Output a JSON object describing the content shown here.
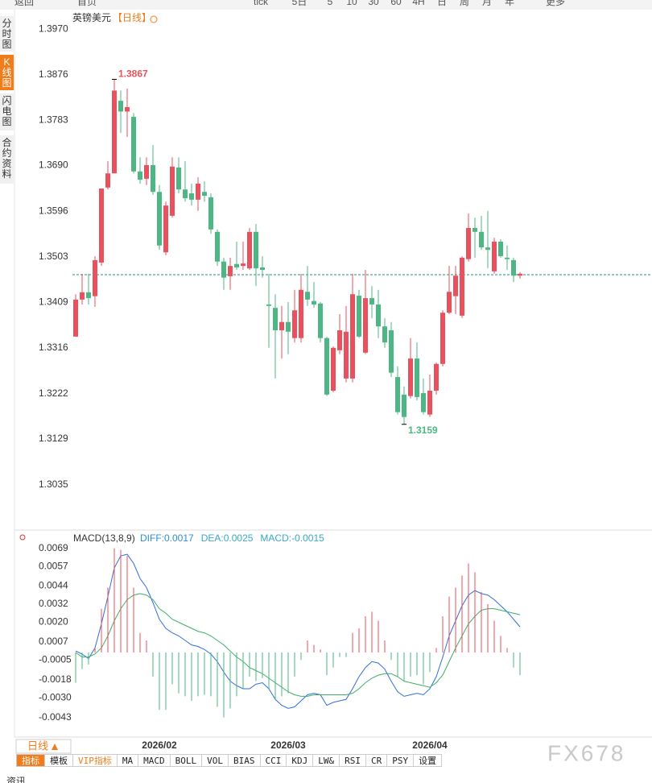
{
  "toolbar": {
    "items": [
      "返回",
      "首页",
      "tick",
      "5日",
      "5",
      "10",
      "30",
      "60",
      "4H",
      "日",
      "周",
      "月",
      "年",
      "更多"
    ]
  },
  "sidebar": {
    "items": [
      "分时图",
      "K线图",
      "闪电图",
      "合约资料"
    ]
  },
  "header": {
    "symbol": "英镑美元",
    "period": "【日线】"
  },
  "chart_data": [
    {
      "type": "candlestick",
      "categories": [
        null,
        null,
        null,
        null,
        null,
        null,
        null,
        null,
        null,
        null,
        null,
        null,
        null,
        "2026/02",
        null,
        null,
        null,
        null,
        null,
        null,
        null,
        null,
        null,
        null,
        null,
        null,
        null,
        null,
        null,
        null,
        null,
        null,
        null,
        "2026/03",
        null,
        null,
        null,
        null,
        null,
        null,
        null,
        null,
        null,
        null,
        null,
        null,
        null,
        null,
        null,
        null,
        null,
        null,
        null,
        null,
        null,
        "2026/04",
        null,
        null,
        null,
        null,
        null,
        null,
        null,
        null,
        null,
        null,
        null,
        null,
        null,
        null
      ],
      "open": [
        1.3339,
        1.3415,
        1.343,
        1.3422,
        1.3491,
        1.3645,
        1.3674,
        1.3823,
        1.3801,
        1.379,
        1.3678,
        1.3663,
        1.3691,
        1.3636,
        1.3512,
        1.3587,
        1.3686,
        1.3641,
        1.3633,
        1.362,
        1.3636,
        1.3625,
        1.3554,
        1.3493,
        1.3463,
        1.3488,
        1.3484,
        1.3479,
        1.3554,
        1.3481,
        1.3405,
        1.3398,
        1.3352,
        1.3369,
        1.3336,
        1.3336,
        1.3431,
        1.3412,
        1.3407,
        1.3336,
        1.3228,
        1.3311,
        1.3253,
        1.3253,
        1.3423,
        1.3306,
        1.3418,
        1.3405,
        1.336,
        1.3352,
        1.3256,
        1.322,
        1.3217,
        1.3294,
        1.3223,
        1.3179,
        1.3228,
        1.3283,
        1.3388,
        1.3422,
        1.3382,
        1.3498,
        1.3562,
        1.3554,
        1.3522,
        1.3473,
        1.3534,
        1.3501,
        1.3496,
        1.3464
      ],
      "high": [
        1.3426,
        1.3468,
        1.3468,
        1.3504,
        1.3643,
        1.3699,
        1.3867,
        1.3844,
        1.3848,
        1.3798,
        1.3707,
        1.3707,
        1.3732,
        1.365,
        1.3616,
        1.3707,
        1.3707,
        1.3699,
        1.3653,
        1.3666,
        1.3658,
        1.3633,
        1.3559,
        1.3501,
        1.3501,
        1.3534,
        1.3534,
        1.3562,
        1.357,
        1.3504,
        1.3468,
        1.3426,
        1.3402,
        1.341,
        1.3435,
        1.3468,
        1.3484,
        1.3451,
        1.341,
        1.3339,
        1.3319,
        1.3385,
        1.3402,
        1.3468,
        1.3435,
        1.3476,
        1.3443,
        1.3435,
        1.3377,
        1.3369,
        1.3278,
        1.3237,
        1.3336,
        1.3327,
        1.3253,
        1.3261,
        1.3286,
        1.3393,
        1.3484,
        1.3484,
        1.3504,
        1.3592,
        1.3583,
        1.3587,
        1.3597,
        1.3542,
        1.3539,
        1.3526,
        1.3501,
        1.3471
      ],
      "low": [
        1.3339,
        1.3405,
        1.3405,
        1.34,
        1.3484,
        1.3641,
        1.3674,
        1.3757,
        1.3749,
        1.3674,
        1.3653,
        1.365,
        1.363,
        1.3517,
        1.3506,
        1.3583,
        1.3633,
        1.3616,
        1.3608,
        1.3597,
        1.3616,
        1.355,
        1.3484,
        1.3435,
        1.3435,
        1.3476,
        1.3476,
        1.3476,
        1.3443,
        1.346,
        1.3316,
        1.3253,
        1.3294,
        1.3303,
        1.3327,
        1.3327,
        1.3402,
        1.3398,
        1.3327,
        1.3217,
        1.3225,
        1.3303,
        1.3245,
        1.3245,
        1.3336,
        1.3303,
        1.3377,
        1.3336,
        1.3316,
        1.3256,
        1.3179,
        1.3159,
        1.3212,
        1.3208,
        1.3179,
        1.3174,
        1.322,
        1.3278,
        1.3385,
        1.3385,
        1.3377,
        1.3493,
        1.3501,
        1.3517,
        1.3479,
        1.3468,
        1.3501,
        1.3476,
        1.3451,
        1.3458
      ],
      "close": [
        1.3415,
        1.343,
        1.3418,
        1.3496,
        1.3643,
        1.3674,
        1.3844,
        1.3801,
        1.381,
        1.3678,
        1.3661,
        1.3691,
        1.3636,
        1.3526,
        1.3608,
        1.3688,
        1.3641,
        1.3623,
        1.362,
        1.3653,
        1.3628,
        1.3559,
        1.3493,
        1.346,
        1.3484,
        1.3481,
        1.3489,
        1.3554,
        1.3479,
        1.3476,
        1.3402,
        1.3352,
        1.3369,
        1.3349,
        1.3393,
        1.3435,
        1.3415,
        1.3405,
        1.3336,
        1.322,
        1.3316,
        1.3352,
        1.3349,
        1.3426,
        1.3339,
        1.3418,
        1.3405,
        1.336,
        1.3327,
        1.3265,
        1.3184,
        1.3174,
        1.3294,
        1.3215,
        1.3184,
        1.3228,
        1.3283,
        1.3388,
        1.3431,
        1.3464,
        1.3501,
        1.3562,
        1.3554,
        1.3522,
        1.3517,
        1.3534,
        1.3504,
        1.3498,
        1.3464,
        1.3468
      ],
      "up_color": "#e8515d",
      "down_color": "#4cb784",
      "last_price": 1.3466,
      "last_price_color": "#2a8a8a",
      "ylim": [
        1.2942,
        1.401
      ],
      "yticks": [
        {
          "value": 1.397,
          "label": "1.3970"
        },
        1.3876,
        1.3783,
        {
          "value": 1.369,
          "label": "1.3690"
        },
        1.3596,
        1.3503,
        1.3409,
        1.3316,
        1.3222,
        1.3129,
        1.3035
      ]
    },
    {
      "type": "macd",
      "title": "MACD(13,8,9)",
      "legend": [
        {
          "text": "DIFF:0.0017",
          "color": "#2c8fd6"
        },
        {
          "text": "DEA:0.0025",
          "color": "#3aa6c9"
        },
        {
          "text": "MACD:-0.0015",
          "color": "#3aa6c9"
        }
      ],
      "series": [
        {
          "color": "#2f6fd8",
          "values": [
            0.0001,
            -0.0001,
            -0.0004,
            0.0003,
            0.0019,
            0.0037,
            0.0056,
            0.0064,
            0.0065,
            0.0059,
            0.0049,
            0.0043,
            0.0033,
            0.0022,
            0.0016,
            0.0013,
            0.0011,
            0.0008,
            0.0005,
            0.0004,
            0.0002,
            -0.0001,
            -0.0006,
            -0.0013,
            -0.0019,
            -0.0022,
            -0.0024,
            -0.0024,
            -0.0021,
            -0.002,
            -0.0024,
            -0.0031,
            -0.0035,
            -0.0037,
            -0.0036,
            -0.0032,
            -0.0028,
            -0.0027,
            -0.0028,
            -0.0035,
            -0.0033,
            -0.0032,
            -0.0031,
            -0.0024,
            -0.0016,
            -0.001,
            -0.0006,
            -0.0007,
            -0.0011,
            -0.0019,
            -0.0026,
            -0.0029,
            -0.0028,
            -0.0027,
            -0.0028,
            -0.0024,
            -0.0016,
            -0.0003,
            0.0011,
            0.0021,
            0.0031,
            0.0038,
            0.0041,
            0.0039,
            0.0038,
            0.0035,
            0.0031,
            0.0027,
            0.0022,
            0.0017
          ]
        },
        {
          "color": "#3fae6a",
          "values": [
            0,
            -0.0003,
            -0.0003,
            -0.0001,
            0.0003,
            0.0011,
            0.0021,
            0.0029,
            0.0035,
            0.0038,
            0.0039,
            0.0038,
            0.0035,
            0.0029,
            0.0026,
            0.0022,
            0.002,
            0.0018,
            0.0016,
            0.0014,
            0.0013,
            0.0011,
            0.0008,
            0.0005,
            0.0001,
            -0.0003,
            -0.0006,
            -0.001,
            -0.0012,
            -0.0014,
            -0.0017,
            -0.002,
            -0.0023,
            -0.0026,
            -0.0028,
            -0.0029,
            -0.0029,
            -0.0028,
            -0.0028,
            -0.0028,
            -0.0028,
            -0.0028,
            -0.0028,
            -0.0027,
            -0.0024,
            -0.002,
            -0.0017,
            -0.0015,
            -0.0014,
            -0.0014,
            -0.0016,
            -0.0019,
            -0.002,
            -0.0021,
            -0.0022,
            -0.0023,
            -0.002,
            -0.0015,
            -0.0006,
            0.0003,
            0.0011,
            0.0019,
            0.0024,
            0.0028,
            0.0029,
            0.0029,
            0.0028,
            0.0027,
            0.0026,
            0.0025
          ]
        },
        {
          "type": "histogram",
          "up_color": "#e8515d",
          "down_color": "#4cb784",
          "values": [
            -0.002,
            -0.0011,
            -0.0008,
            0.0003,
            0.0029,
            0.0043,
            0.0069,
            0.0068,
            0.0064,
            0.0043,
            0.0013,
            0.0008,
            -0.0016,
            -0.0038,
            -0.0038,
            -0.0021,
            -0.0027,
            -0.0029,
            -0.0032,
            -0.0029,
            -0.0028,
            -0.0029,
            -0.0036,
            -0.0043,
            -0.0037,
            -0.0029,
            -0.0024,
            -0.0016,
            -0.0019,
            -0.0017,
            -0.0024,
            -0.0031,
            -0.0029,
            -0.0027,
            -0.0016,
            -0.0005,
            0.0008,
            0.0005,
            0.0002,
            -0.0015,
            -0.001,
            -0.0003,
            -0.0003,
            0.0013,
            0.0016,
            0.0024,
            0.0027,
            0.0021,
            0.0008,
            -0.0005,
            -0.0016,
            -0.0019,
            -0.0016,
            -0.0015,
            -0.0021,
            -0.0013,
            0.0003,
            0.0024,
            0.0037,
            0.0043,
            0.0051,
            0.0059,
            0.0053,
            0.004,
            0.0032,
            0.0021,
            0.0011,
            0.0003,
            -0.001,
            -0.0015
          ]
        }
      ],
      "ylim": [
        -0.0056,
        0.008
      ],
      "yticks": [
        0.0069,
        0.0057,
        0.0044,
        0.0032,
        {
          "value": 0.002,
          "label": "0.0020"
        },
        0.0007,
        -0.0005,
        -0.0018,
        {
          "value": -0.003,
          "label": "-0.0030"
        },
        -0.0043
      ]
    }
  ],
  "period_selector": "日线",
  "tabs": [
    "指标",
    "模板",
    "VIP指标",
    "MA",
    "MACD",
    "BOLL",
    "VOL",
    "BIAS",
    "CCI",
    "KDJ",
    "LW&",
    "RSI",
    "CR",
    "PSY",
    "设置"
  ],
  "footer": {
    "watermark": "FX678",
    "partial": "资讯"
  }
}
